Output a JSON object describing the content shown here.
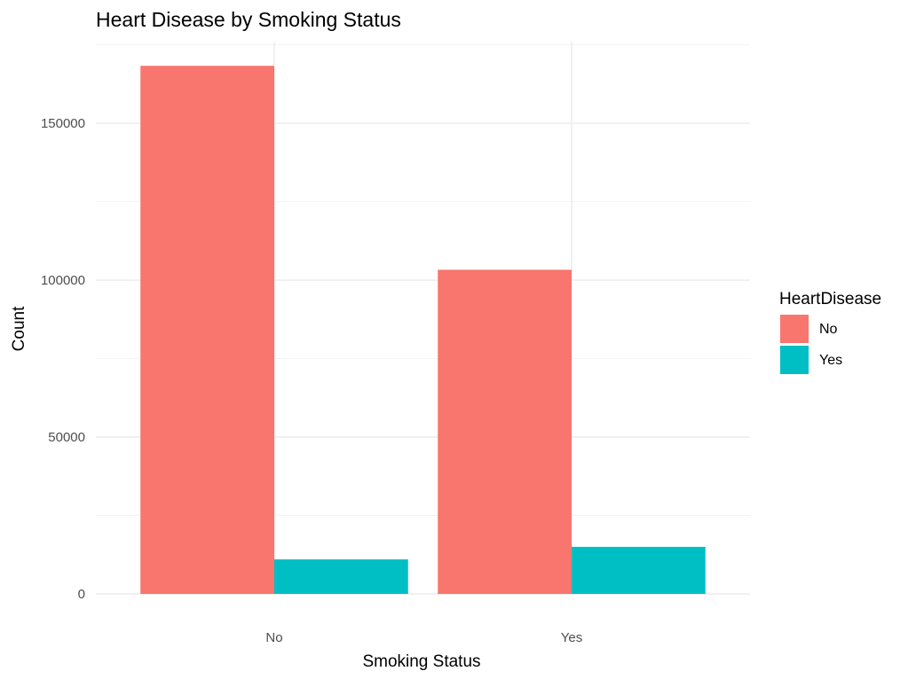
{
  "chart_data": {
    "type": "bar",
    "title": "Heart Disease by Smoking Status",
    "xlabel": "Smoking Status",
    "ylabel": "Count",
    "categories": [
      "No",
      "Yes"
    ],
    "series": [
      {
        "name": "No",
        "values": [
          168300,
          103300
        ]
      },
      {
        "name": "Yes",
        "values": [
          11000,
          15000
        ]
      }
    ],
    "colors": {
      "No": "#F8766D",
      "Yes": "#00BFC4"
    },
    "ylim": [
      0,
      176000
    ],
    "y_ticks": [
      0,
      50000,
      100000,
      150000
    ],
    "y_tick_labels": [
      "0",
      "50000",
      "100000",
      "150000"
    ],
    "grid": true,
    "bar_position": "dodge",
    "legend": {
      "title": "HeartDisease",
      "position": "right",
      "entries": [
        "No",
        "Yes"
      ]
    }
  }
}
